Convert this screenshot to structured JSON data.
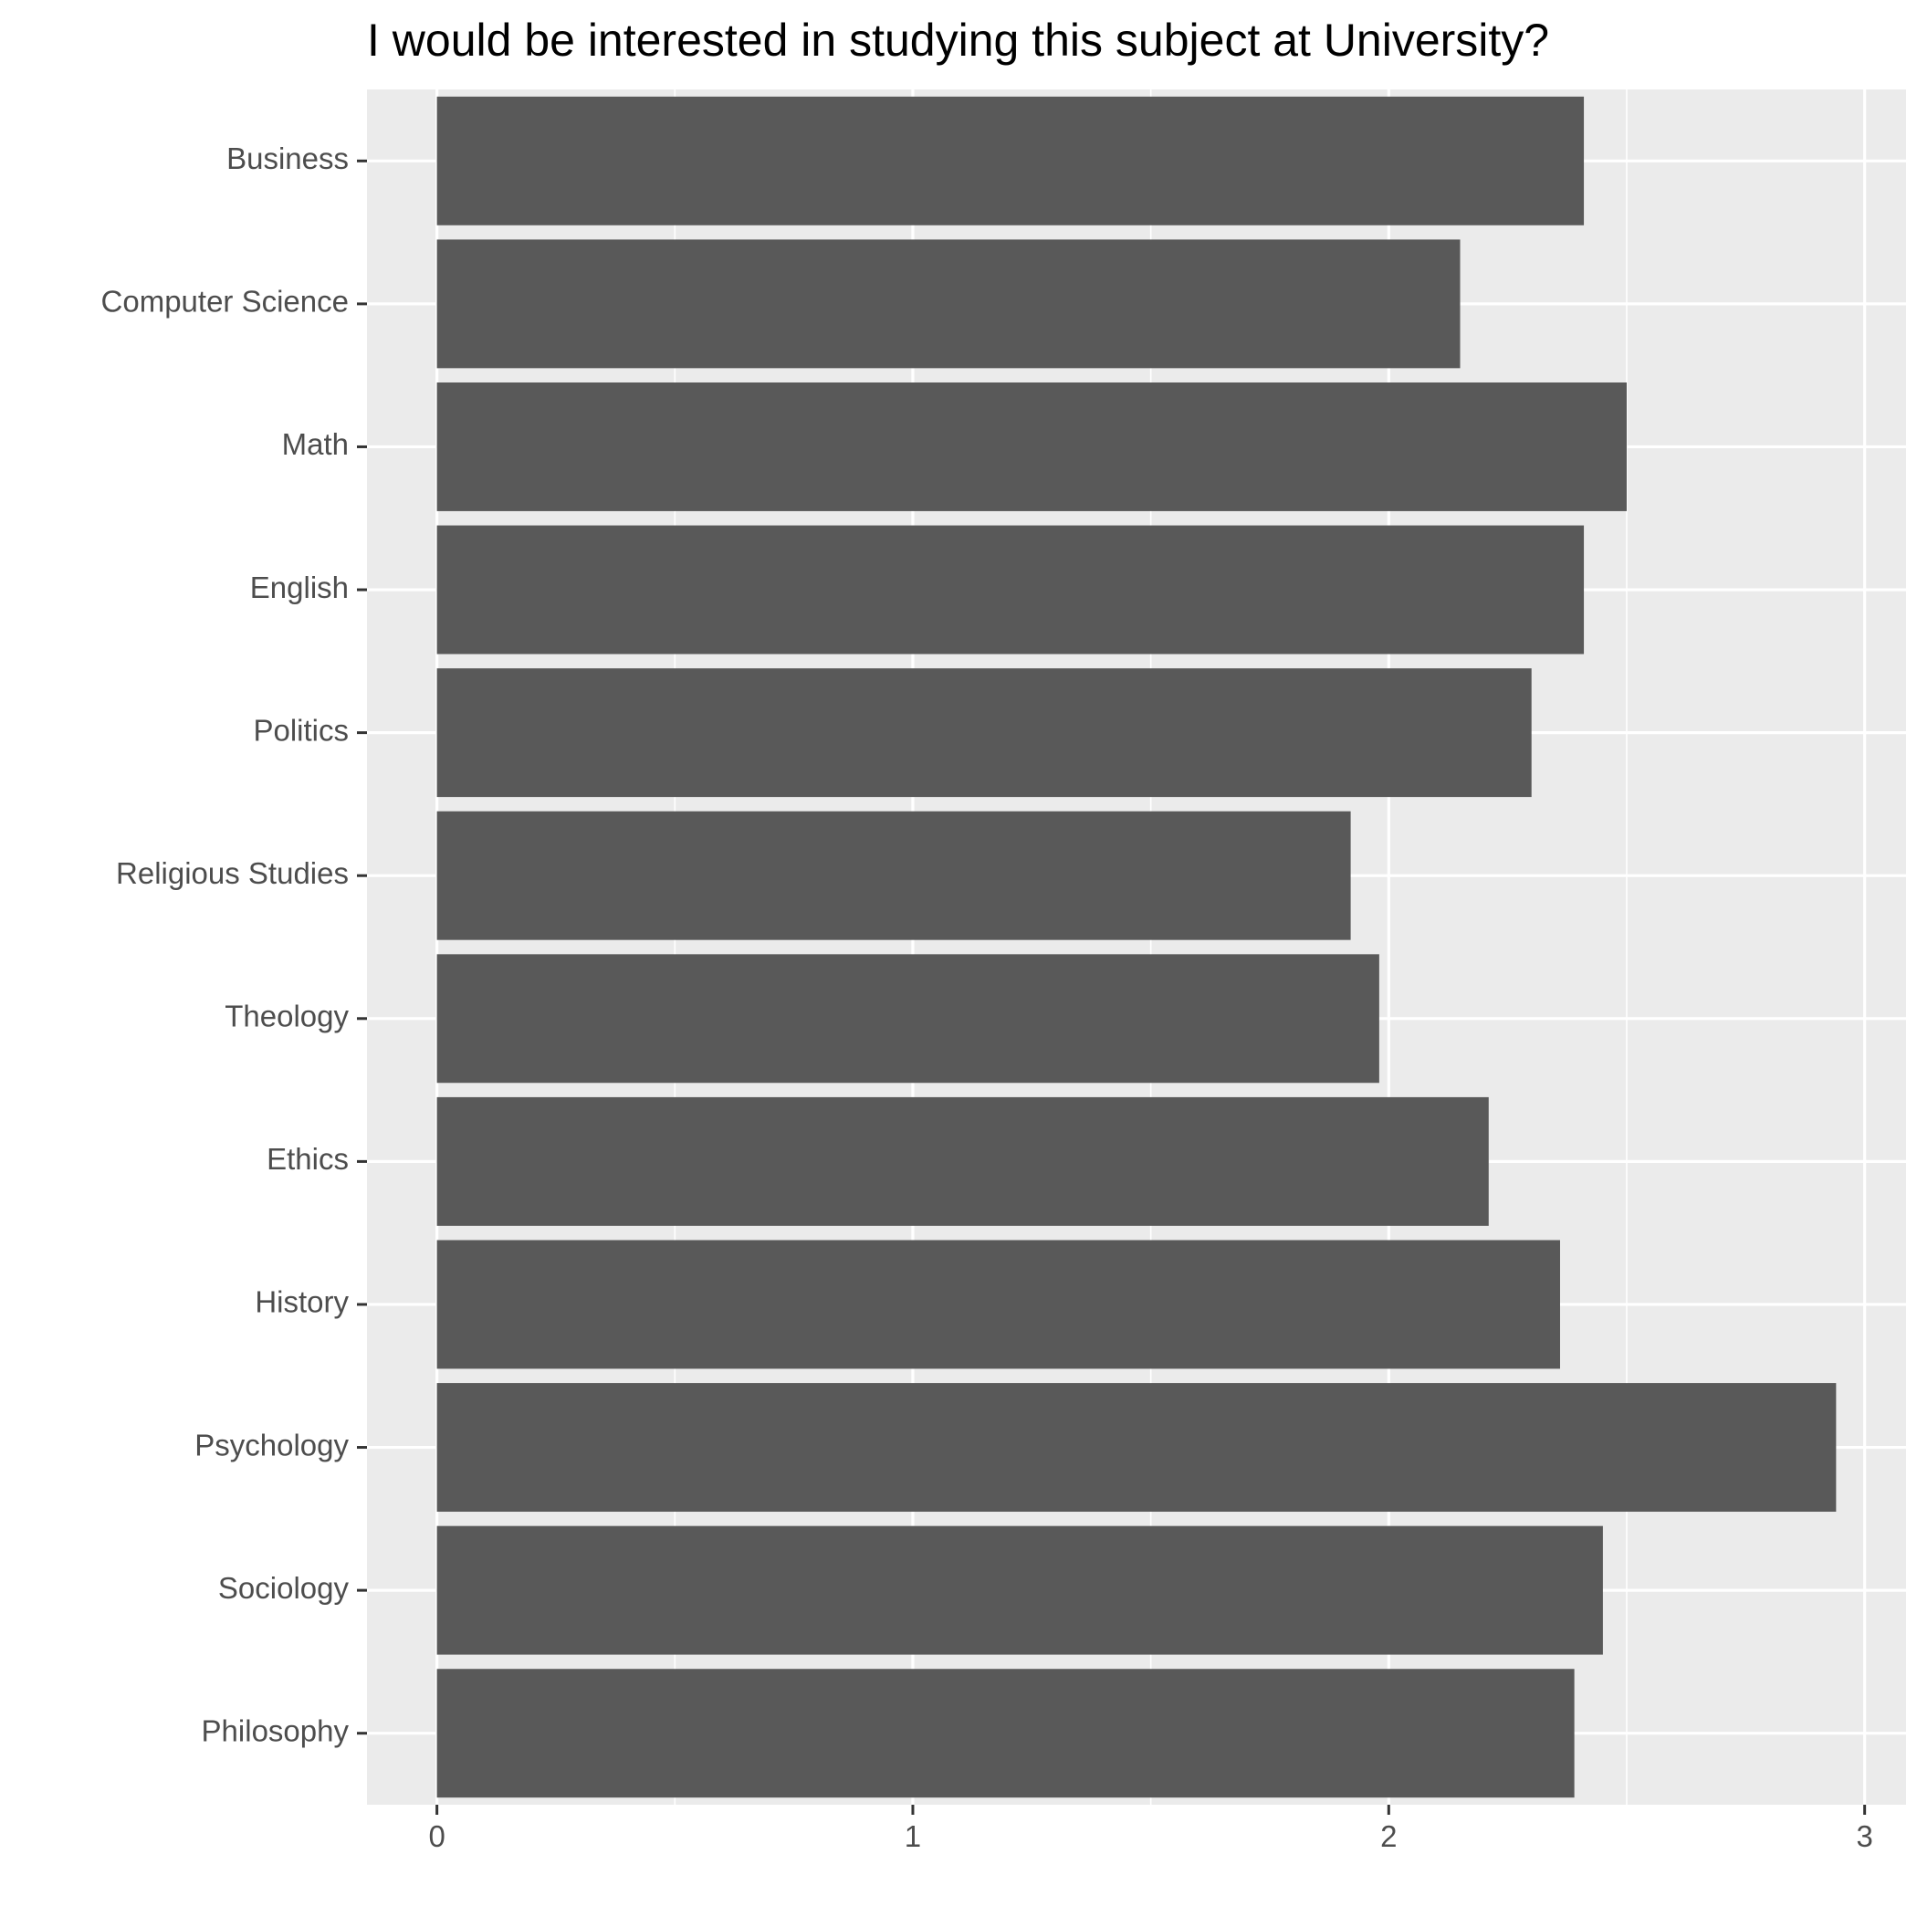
{
  "chart_data": {
    "type": "bar",
    "orientation": "horizontal",
    "title": "I would be interested in studying this subject at University?",
    "xlabel": "",
    "ylabel": "",
    "categories": [
      "Business",
      "Computer Science",
      "Math",
      "English",
      "Politics",
      "Religious Studies",
      "Theology",
      "Ethics",
      "History",
      "Psychology",
      "Sociology",
      "Philosophy"
    ],
    "values": [
      2.41,
      2.15,
      2.5,
      2.41,
      2.3,
      1.92,
      1.98,
      2.21,
      2.36,
      2.94,
      2.45,
      2.39
    ],
    "xlim": [
      -0.147,
      3.087
    ],
    "x_ticks": [
      0,
      1,
      2,
      3
    ],
    "x_tick_labels": [
      "0",
      "1",
      "2",
      "3"
    ],
    "grid": true,
    "legend": "none",
    "colors": {
      "bar": "#595959",
      "panel": "#ebebeb",
      "grid": "#ffffff",
      "text": "#4d4d4d",
      "title": "#000000"
    }
  }
}
